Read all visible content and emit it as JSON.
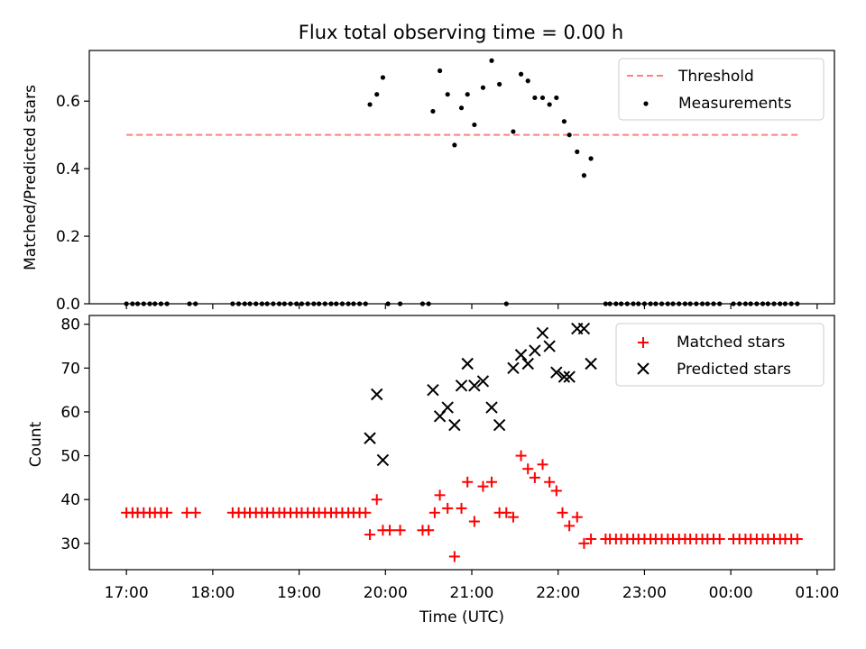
{
  "chart_data": {
    "title": "Flux total observing time = 0.00 h",
    "xlabel": "Time (UTC)",
    "x_ticks": [
      "17:00",
      "18:00",
      "19:00",
      "20:00",
      "21:00",
      "22:00",
      "23:00",
      "00:00",
      "01:00"
    ],
    "x_range_hours": [
      16.57,
      25.2
    ],
    "panels": [
      {
        "type": "scatter",
        "ylabel": "Matched/Predicted stars",
        "ylim": [
          0,
          0.75
        ],
        "y_ticks": [
          0.0,
          0.2,
          0.4,
          0.6
        ],
        "y_tick_labels": [
          "0.0",
          "0.2",
          "0.4",
          "0.6"
        ],
        "legend_position": "top-right",
        "threshold": {
          "name": "Threshold",
          "value": 0.5,
          "x_range": [
            17.0,
            24.8
          ],
          "color": "#ff7f7f"
        },
        "series": [
          {
            "name": "Measurements",
            "color": "#000000",
            "x": [
              17.0,
              17.07,
              17.13,
              17.2,
              17.27,
              17.33,
              17.4,
              17.47,
              17.73,
              17.8,
              18.23,
              18.3,
              18.37,
              18.43,
              18.5,
              18.57,
              18.63,
              18.7,
              18.77,
              18.83,
              18.9,
              18.97,
              19.03,
              19.1,
              19.17,
              19.23,
              19.3,
              19.37,
              19.43,
              19.5,
              19.57,
              19.63,
              19.7,
              19.77,
              19.82,
              19.9,
              19.97,
              20.03,
              20.17,
              20.43,
              20.5,
              20.55,
              20.63,
              20.72,
              20.8,
              20.88,
              20.95,
              21.03,
              21.13,
              21.23,
              21.32,
              21.4,
              21.48,
              21.57,
              21.65,
              21.73,
              21.82,
              21.9,
              21.98,
              22.07,
              22.13,
              22.22,
              22.3,
              22.38,
              22.55,
              22.6,
              22.67,
              22.73,
              22.8,
              22.87,
              22.93,
              23.0,
              23.07,
              23.13,
              23.2,
              23.27,
              23.33,
              23.4,
              23.47,
              23.53,
              23.6,
              23.67,
              23.73,
              23.8,
              23.87,
              24.03,
              24.1,
              24.17,
              24.23,
              24.3,
              24.37,
              24.43,
              24.5,
              24.57,
              24.63,
              24.7,
              24.77
            ],
            "y": [
              0,
              0,
              0,
              0,
              0,
              0,
              0,
              0,
              0,
              0,
              0,
              0,
              0,
              0,
              0,
              0,
              0,
              0,
              0,
              0,
              0,
              0,
              0,
              0,
              0,
              0,
              0,
              0,
              0,
              0,
              0,
              0,
              0,
              0,
              0.59,
              0.62,
              0.67,
              0,
              0,
              0,
              0,
              0.57,
              0.69,
              0.62,
              0.47,
              0.58,
              0.62,
              0.53,
              0.64,
              0.72,
              0.65,
              0,
              0.51,
              0.68,
              0.66,
              0.61,
              0.61,
              0.59,
              0.61,
              0.54,
              0.5,
              0.45,
              0.38,
              0.43,
              0,
              0,
              0,
              0,
              0,
              0,
              0,
              0,
              0,
              0,
              0,
              0,
              0,
              0,
              0,
              0,
              0,
              0,
              0,
              0,
              0,
              0,
              0,
              0,
              0,
              0,
              0,
              0,
              0,
              0,
              0,
              0,
              0
            ]
          }
        ]
      },
      {
        "type": "scatter",
        "ylabel": "Count",
        "ylim": [
          24,
          82
        ],
        "y_ticks": [
          30,
          40,
          50,
          60,
          70,
          80
        ],
        "y_tick_labels": [
          "30",
          "40",
          "50",
          "60",
          "70",
          "80"
        ],
        "legend_position": "top-right",
        "series": [
          {
            "name": "Matched stars",
            "marker": "plus",
            "color": "#ff0000",
            "x": [
              17.0,
              17.07,
              17.13,
              17.2,
              17.27,
              17.33,
              17.4,
              17.47,
              17.7,
              17.8,
              18.23,
              18.3,
              18.37,
              18.43,
              18.5,
              18.57,
              18.63,
              18.7,
              18.77,
              18.83,
              18.9,
              18.97,
              19.03,
              19.1,
              19.17,
              19.23,
              19.3,
              19.37,
              19.43,
              19.5,
              19.57,
              19.63,
              19.7,
              19.77,
              19.82,
              19.9,
              19.97,
              20.05,
              20.17,
              20.43,
              20.5,
              20.57,
              20.63,
              20.72,
              20.8,
              20.88,
              20.95,
              21.03,
              21.13,
              21.23,
              21.32,
              21.4,
              21.48,
              21.57,
              21.65,
              21.73,
              21.82,
              21.9,
              21.98,
              22.05,
              22.13,
              22.22,
              22.3,
              22.38,
              22.55,
              22.6,
              22.67,
              22.73,
              22.8,
              22.87,
              22.93,
              23.0,
              23.07,
              23.13,
              23.2,
              23.27,
              23.33,
              23.4,
              23.47,
              23.53,
              23.6,
              23.67,
              23.73,
              23.8,
              23.87,
              24.03,
              24.1,
              24.17,
              24.23,
              24.3,
              24.37,
              24.43,
              24.5,
              24.57,
              24.63,
              24.7,
              24.77
            ],
            "y": [
              37,
              37,
              37,
              37,
              37,
              37,
              37,
              37,
              37,
              37,
              37,
              37,
              37,
              37,
              37,
              37,
              37,
              37,
              37,
              37,
              37,
              37,
              37,
              37,
              37,
              37,
              37,
              37,
              37,
              37,
              37,
              37,
              37,
              37,
              32,
              40,
              33,
              33,
              33,
              33,
              33,
              37,
              41,
              38,
              27,
              38,
              44,
              35,
              43,
              44,
              37,
              37,
              36,
              50,
              47,
              45,
              48,
              44,
              42,
              37,
              34,
              36,
              30,
              31,
              31,
              31,
              31,
              31,
              31,
              31,
              31,
              31,
              31,
              31,
              31,
              31,
              31,
              31,
              31,
              31,
              31,
              31,
              31,
              31,
              31,
              31,
              31,
              31,
              31,
              31,
              31,
              31,
              31,
              31,
              31,
              31,
              31
            ]
          },
          {
            "name": "Predicted stars",
            "marker": "x",
            "color": "#000000",
            "x": [
              19.82,
              19.9,
              19.97,
              20.55,
              20.63,
              20.72,
              20.8,
              20.88,
              20.95,
              21.03,
              21.13,
              21.23,
              21.32,
              21.48,
              21.57,
              21.65,
              21.73,
              21.82,
              21.9,
              21.98,
              22.07,
              22.13,
              22.22,
              22.3,
              22.38
            ],
            "y": [
              54,
              64,
              49,
              65,
              59,
              61,
              57,
              66,
              71,
              66,
              67,
              61,
              57,
              70,
              73,
              71,
              74,
              78,
              75,
              69,
              68,
              68,
              79,
              79,
              71
            ]
          }
        ]
      }
    ]
  }
}
